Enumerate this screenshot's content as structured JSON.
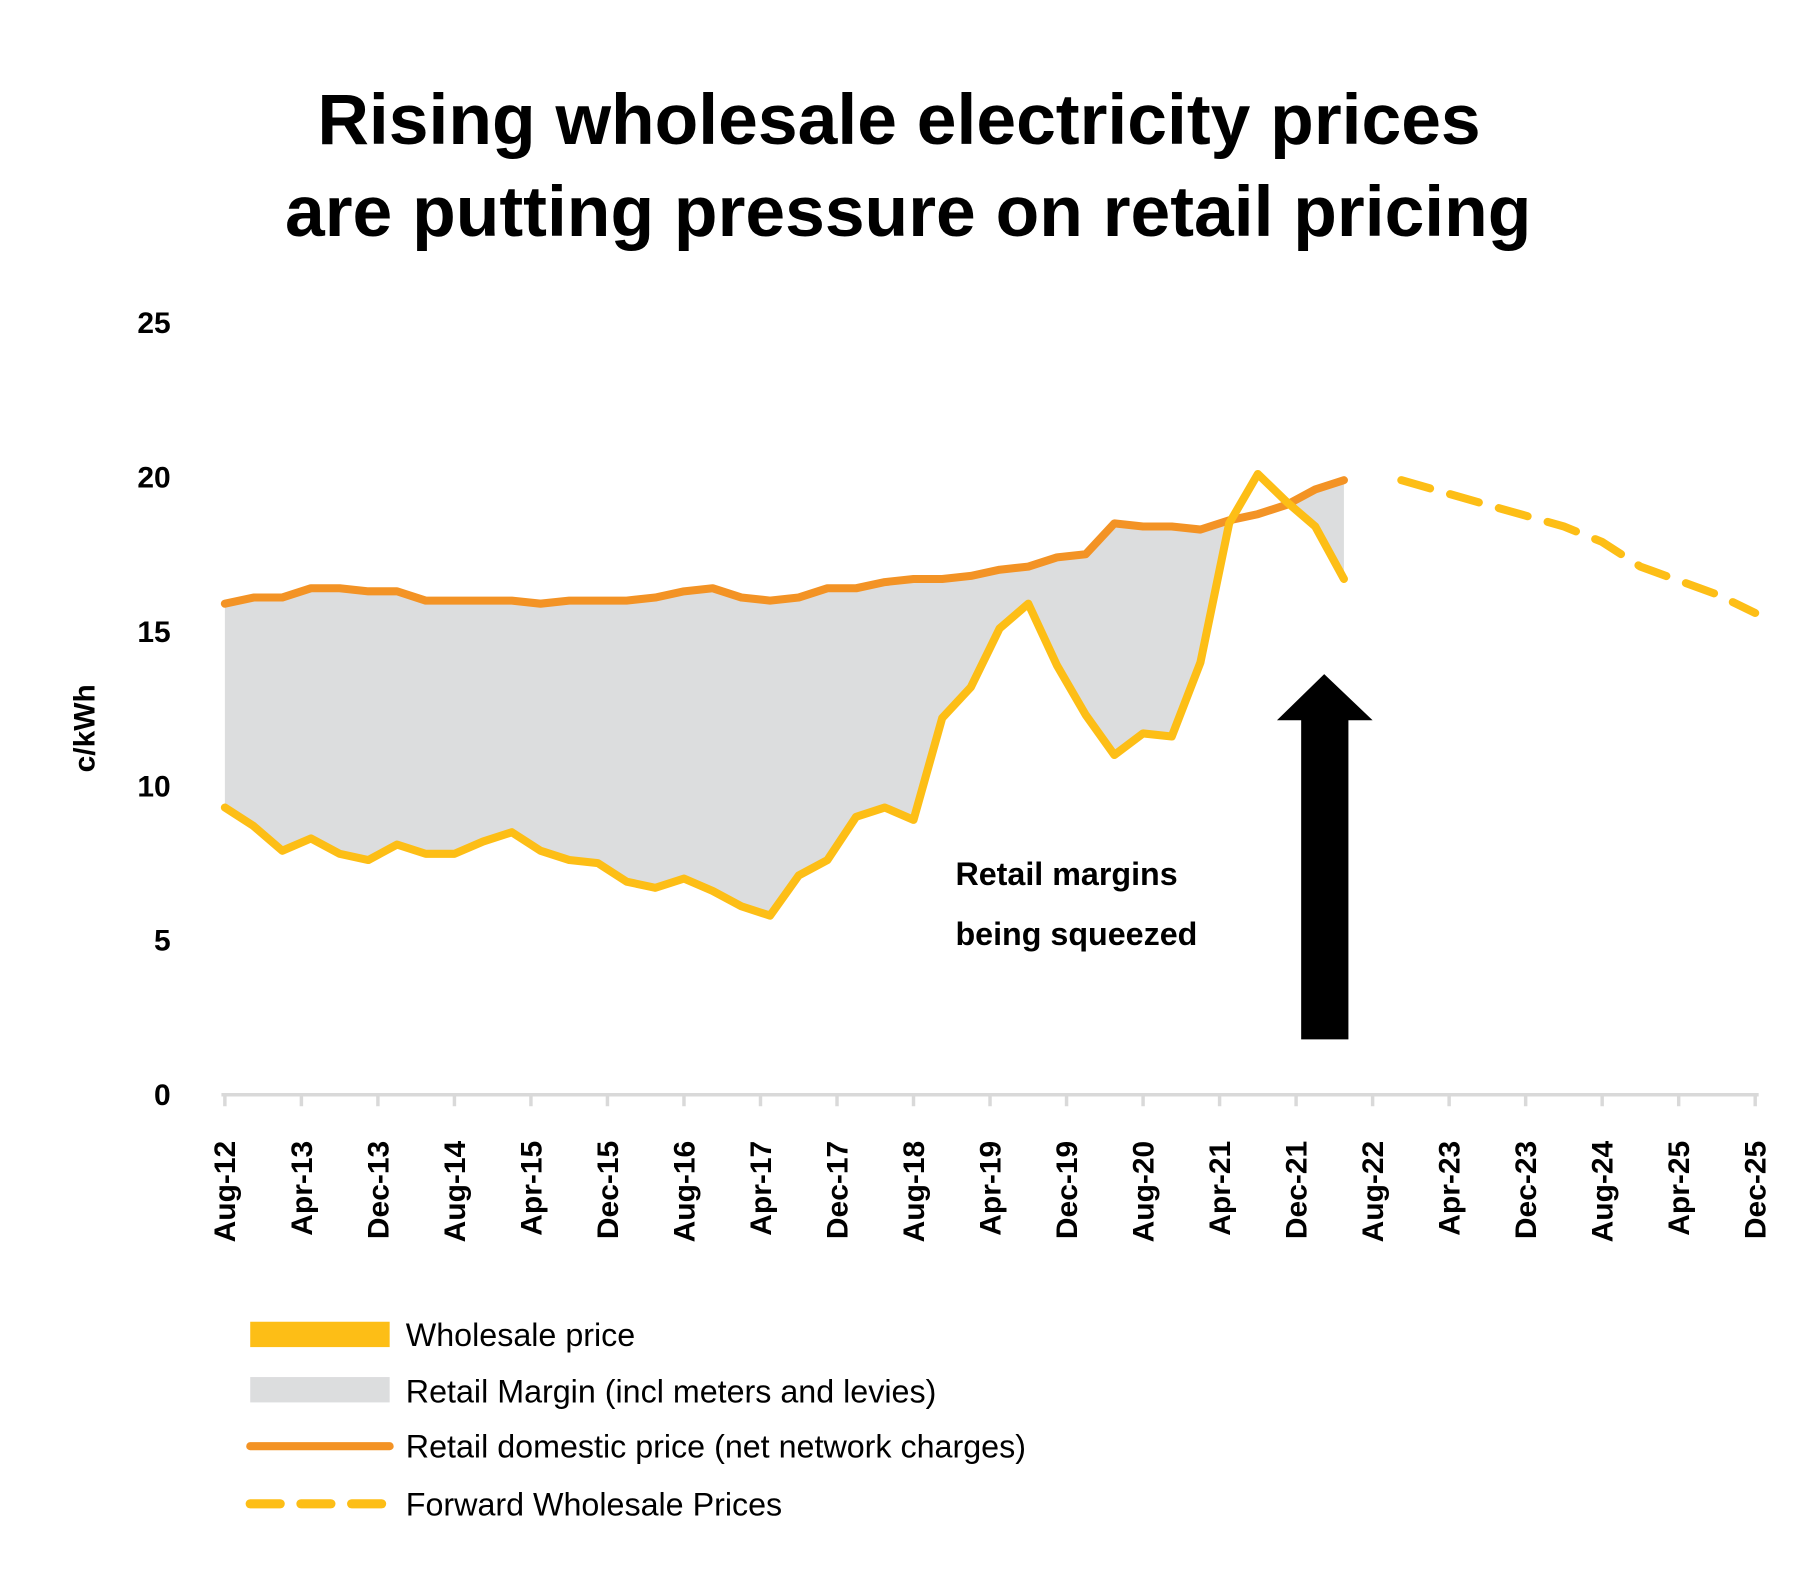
{
  "chart_data": {
    "type": "line",
    "title": [
      "Rising wholesale electricity prices",
      "are putting pressure on retail pricing"
    ],
    "ylabel": "c/kWh",
    "xlabel": "",
    "ylim": [
      0,
      25
    ],
    "yticks": [
      0,
      5,
      10,
      15,
      20,
      25
    ],
    "xticks": [
      "Aug-12",
      "Apr-13",
      "Dec-13",
      "Aug-14",
      "Apr-15",
      "Dec-15",
      "Aug-16",
      "Apr-17",
      "Dec-17",
      "Aug-18",
      "Apr-19",
      "Dec-19",
      "Aug-20",
      "Apr-21",
      "Dec-21",
      "Aug-22",
      "Apr-23",
      "Dec-23",
      "Aug-24",
      "Apr-25",
      "Dec-25"
    ],
    "x_start": "Aug-12",
    "x_step": "quarterly",
    "grid": false,
    "legend_placement": "bottom",
    "series": [
      {
        "name": "Wholesale price",
        "color": "#FDBE16",
        "style": "solid",
        "x": [
          "Aug-12",
          "Nov-12",
          "Feb-13",
          "May-13",
          "Aug-13",
          "Nov-13",
          "Feb-14",
          "May-14",
          "Aug-14",
          "Nov-14",
          "Feb-15",
          "May-15",
          "Aug-15",
          "Nov-15",
          "Feb-16",
          "May-16",
          "Aug-16",
          "Nov-16",
          "Feb-17",
          "May-17",
          "Aug-17",
          "Nov-17",
          "Feb-18",
          "May-18",
          "Aug-18",
          "Nov-18",
          "Feb-19",
          "May-19",
          "Aug-19",
          "Nov-19",
          "Feb-20",
          "May-20",
          "Aug-20",
          "Nov-20",
          "Feb-21",
          "May-21",
          "Aug-21",
          "Nov-21",
          "Feb-22",
          "May-22"
        ],
        "values": [
          9.3,
          8.7,
          7.9,
          8.3,
          7.8,
          7.6,
          8.1,
          7.8,
          7.8,
          8.2,
          8.5,
          7.9,
          7.6,
          7.5,
          6.9,
          6.7,
          7.0,
          6.6,
          6.1,
          5.8,
          7.1,
          7.6,
          9.0,
          9.3,
          8.9,
          12.2,
          13.2,
          15.1,
          15.9,
          13.9,
          12.3,
          11.0,
          11.7,
          11.6,
          14.0,
          18.5,
          20.1,
          19.2,
          18.4,
          16.7
        ]
      },
      {
        "name": "Retail Margin (incl meters and levies)",
        "color": "#DCDDDE",
        "style": "area"
      },
      {
        "name": "Retail domestic price (net network charges)",
        "color": "#F39325",
        "style": "solid",
        "x": [
          "Aug-12",
          "Nov-12",
          "Feb-13",
          "May-13",
          "Aug-13",
          "Nov-13",
          "Feb-14",
          "May-14",
          "Aug-14",
          "Nov-14",
          "Feb-15",
          "May-15",
          "Aug-15",
          "Nov-15",
          "Feb-16",
          "May-16",
          "Aug-16",
          "Nov-16",
          "Feb-17",
          "May-17",
          "Aug-17",
          "Nov-17",
          "Feb-18",
          "May-18",
          "Aug-18",
          "Nov-18",
          "Feb-19",
          "May-19",
          "Aug-19",
          "Nov-19",
          "Feb-20",
          "May-20",
          "Aug-20",
          "Nov-20",
          "Feb-21",
          "May-21",
          "Aug-21",
          "Nov-21",
          "Feb-22",
          "May-22"
        ],
        "values": [
          15.9,
          16.1,
          16.1,
          16.4,
          16.4,
          16.3,
          16.3,
          16.0,
          16.0,
          16.0,
          16.0,
          15.9,
          16.0,
          16.0,
          16.0,
          16.1,
          16.3,
          16.4,
          16.1,
          16.0,
          16.1,
          16.4,
          16.4,
          16.6,
          16.7,
          16.7,
          16.8,
          17.0,
          17.1,
          17.4,
          17.5,
          18.5,
          18.4,
          18.4,
          18.3,
          18.6,
          18.8,
          19.1,
          19.6,
          19.9
        ]
      },
      {
        "name": "Forward Wholesale Prices",
        "color": "#FDBE16",
        "style": "dashed",
        "x": [
          "Nov-22",
          "Aug-23",
          "Apr-24",
          "Aug-24",
          "Dec-24",
          "Aug-25",
          "Dec-25"
        ],
        "values": [
          19.9,
          19.1,
          18.4,
          17.9,
          17.1,
          16.2,
          15.6
        ]
      }
    ],
    "annotation": [
      "Retail margins",
      "being squeezed"
    ],
    "arrow": {
      "direction": "up",
      "color": "#000000"
    }
  }
}
